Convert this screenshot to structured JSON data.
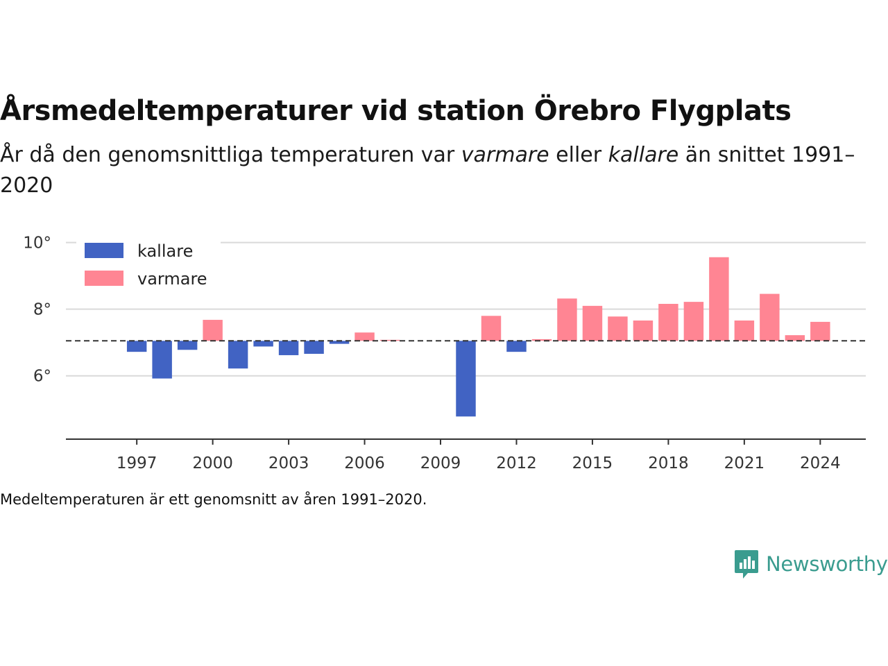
{
  "title": "Årsmedeltemperaturer vid station Örebro Flygplats",
  "subtitle": {
    "part1": "År då den genomsnittliga temperaturen var ",
    "warm_word": "varmare",
    "part2": " eller ",
    "cold_word": "kallare",
    "part3": " än snittet 1991–2020"
  },
  "footnote": "Medeltemperaturen är ett genomsnitt av åren 1991–2020.",
  "logo": {
    "text": "Newsworthy",
    "icon": "newsworthy-chat-bars-icon"
  },
  "colors": {
    "cold": "#4163c3",
    "warm": "#ff8593",
    "grid": "#d9d9d9",
    "axis": "#333333",
    "baseline": "#333333"
  },
  "chart_data": {
    "type": "bar",
    "baseline": 7.05,
    "baseline_style": "dashed",
    "x": [
      1996,
      1997,
      1998,
      1999,
      2000,
      2001,
      2002,
      2003,
      2004,
      2005,
      2006,
      2007,
      2008,
      2009,
      2010,
      2011,
      2012,
      2013,
      2014,
      2015,
      2016,
      2017,
      2018,
      2019,
      2020,
      2021,
      2022,
      2023,
      2024
    ],
    "values": [
      null,
      6.72,
      5.92,
      6.78,
      7.68,
      6.22,
      6.88,
      6.62,
      6.66,
      6.96,
      7.3,
      7.08,
      null,
      null,
      4.78,
      7.8,
      6.72,
      7.1,
      8.32,
      8.1,
      7.78,
      7.66,
      8.16,
      8.22,
      9.56,
      7.66,
      8.46,
      7.22,
      7.62
    ],
    "ylim": [
      4.1,
      10.2
    ],
    "y_ticks": [
      6,
      8,
      10
    ],
    "y_tick_labels": [
      "6°",
      "8°",
      "10°"
    ],
    "x_ticks": [
      1997,
      2000,
      2003,
      2006,
      2009,
      2012,
      2015,
      2018,
      2021,
      2024
    ],
    "x_tick_labels": [
      "1997",
      "2000",
      "2003",
      "2006",
      "2009",
      "2012",
      "2015",
      "2018",
      "2021",
      "2024"
    ],
    "xlim": [
      1994.2,
      2025.8
    ],
    "grid": true,
    "legend": {
      "placement": "top-left",
      "entries": [
        {
          "label": "kallare",
          "color": "#4163c3"
        },
        {
          "label": "varmare",
          "color": "#ff8593"
        }
      ]
    },
    "xlabel": "",
    "ylabel": ""
  }
}
